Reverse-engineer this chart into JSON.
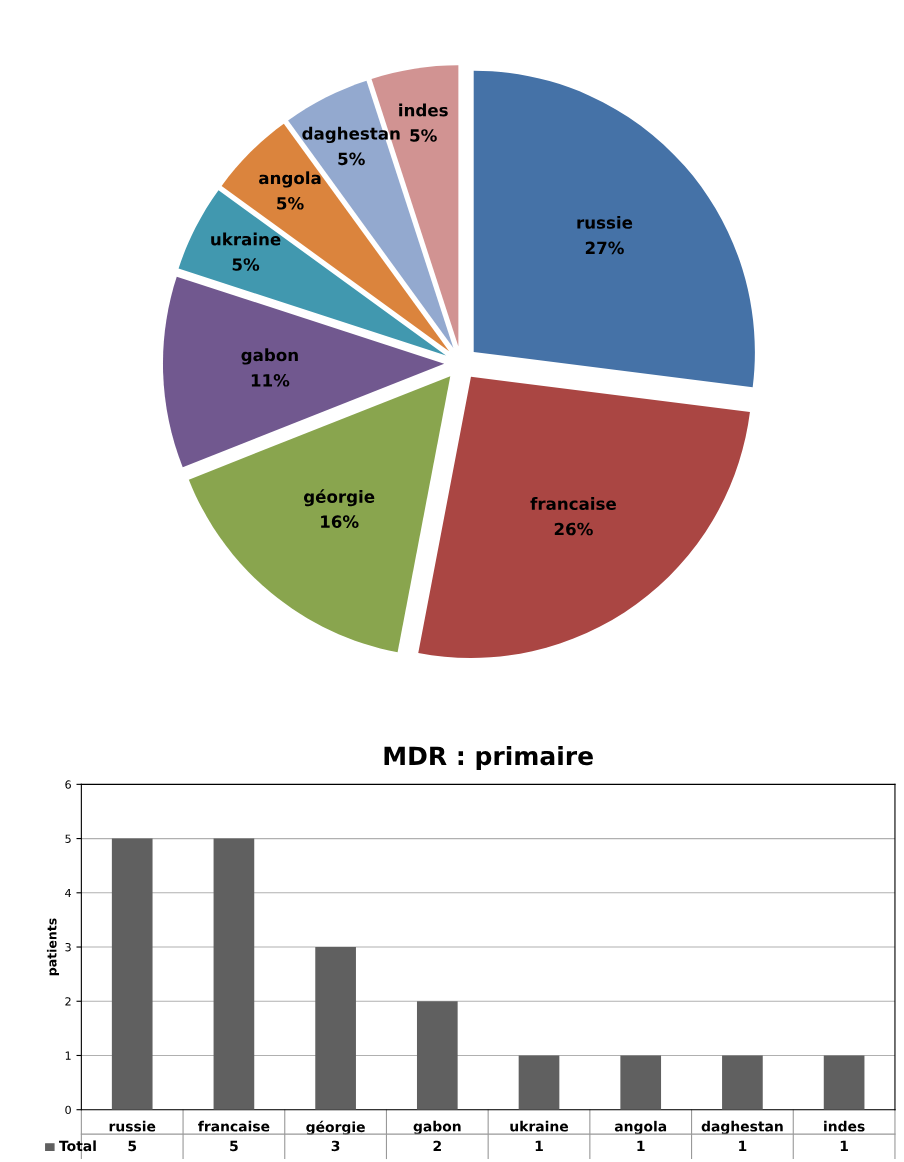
{
  "chart_data": [
    {
      "type": "pie",
      "categories": [
        "russie",
        "francaise",
        "géorgie",
        "gabon",
        "ukraine",
        "angola",
        "daghestan",
        "indes"
      ],
      "values": [
        27,
        26,
        16,
        11,
        5,
        5,
        5,
        5
      ],
      "value_labels": [
        "27%",
        "26%",
        "16%",
        "11%",
        "5%",
        "5%",
        "5%",
        "5%"
      ],
      "colors": [
        "#4572a7",
        "#aa4643",
        "#89a54e",
        "#71588f",
        "#4198af",
        "#db843d",
        "#93a9cf",
        "#d19392"
      ]
    },
    {
      "type": "bar",
      "title": "MDR : primaire",
      "ylabel": "patients",
      "categories": [
        "russie",
        "francaise",
        "géorgie",
        "gabon",
        "ukraine",
        "angola",
        "daghestan",
        "indes"
      ],
      "series": [
        {
          "name": "Total",
          "color": "#606060",
          "values": [
            5,
            5,
            3,
            2,
            1,
            1,
            1,
            1
          ]
        }
      ],
      "ylim": [
        0,
        6
      ],
      "yticks": [
        0,
        1,
        2,
        3,
        4,
        5,
        6
      ],
      "grid": "y",
      "data_labels": true,
      "legend": "bottom"
    }
  ]
}
